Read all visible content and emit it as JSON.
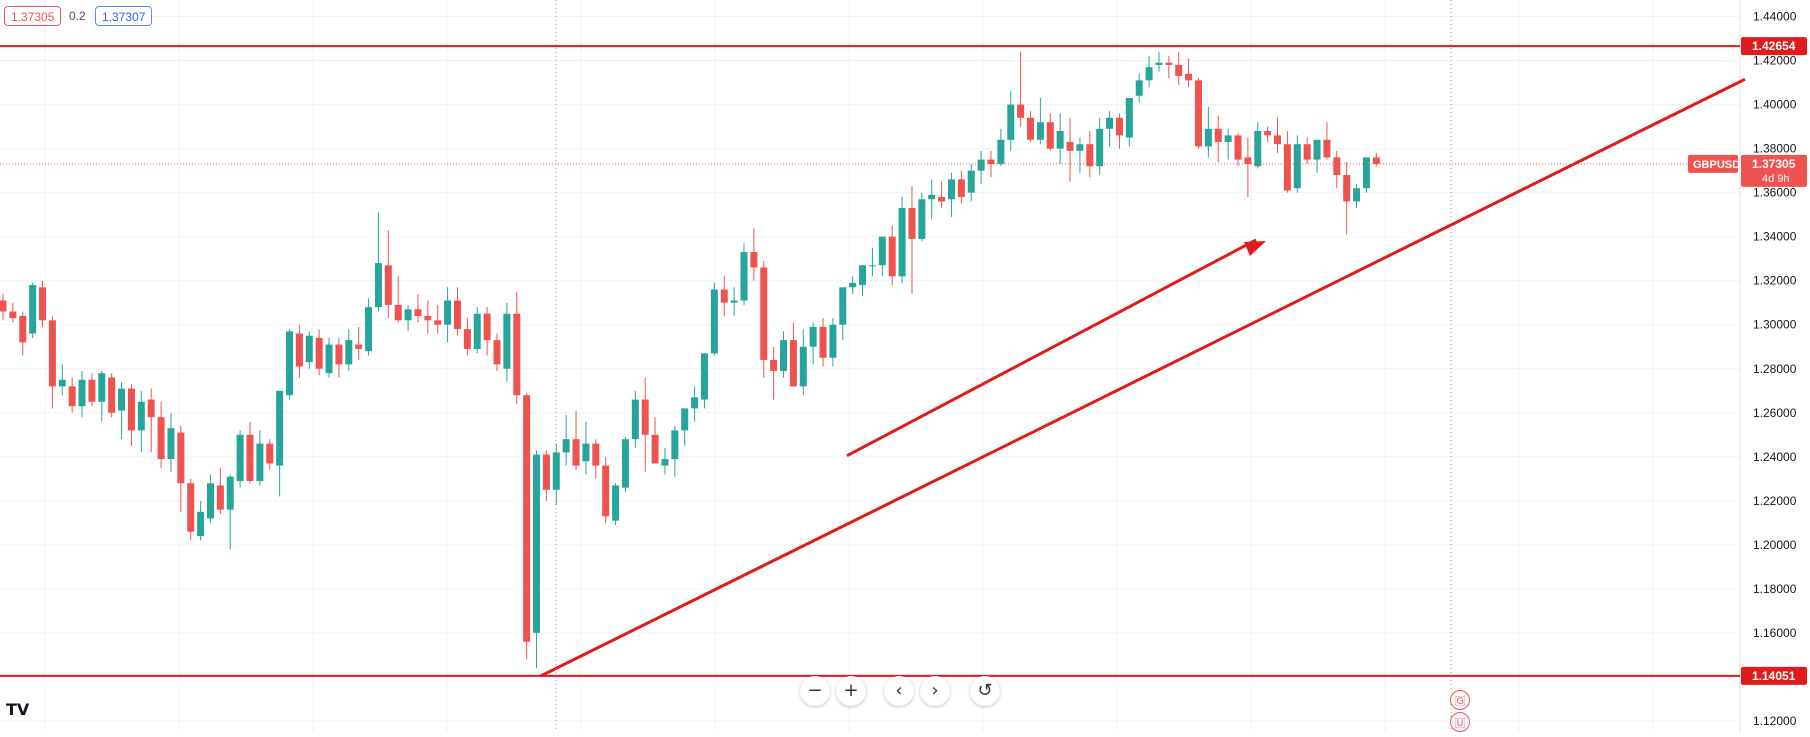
{
  "chart_data": {
    "type": "candlestick",
    "symbol": "GBPUSD",
    "y_range": [
      1.115,
      1.4475
    ],
    "y_ticks": [
      "1.44000",
      "1.42000",
      "1.40000",
      "1.38000",
      "1.36000",
      "1.34000",
      "1.32000",
      "1.30000",
      "1.28000",
      "1.26000",
      "1.24000",
      "1.22000",
      "1.20000",
      "1.18000",
      "1.16000",
      "1.14000",
      "1.12000"
    ],
    "y_tick_values": [
      1.44,
      1.42,
      1.4,
      1.38,
      1.36,
      1.34,
      1.32,
      1.3,
      1.28,
      1.26,
      1.24,
      1.22,
      1.2,
      1.18,
      1.16,
      1.14,
      1.12
    ],
    "candles": [
      [
        1.311,
        1.314,
        1.302,
        1.306
      ],
      [
        1.306,
        1.31,
        1.301,
        1.303
      ],
      [
        1.304,
        1.306,
        1.286,
        1.292
      ],
      [
        1.296,
        1.319,
        1.294,
        1.318
      ],
      [
        1.317,
        1.32,
        1.299,
        1.302
      ],
      [
        1.302,
        1.304,
        1.262,
        1.272
      ],
      [
        1.272,
        1.282,
        1.268,
        1.275
      ],
      [
        1.272,
        1.276,
        1.26,
        1.263
      ],
      [
        1.263,
        1.279,
        1.258,
        1.275
      ],
      [
        1.275,
        1.278,
        1.263,
        1.265
      ],
      [
        1.265,
        1.279,
        1.256,
        1.278
      ],
      [
        1.276,
        1.278,
        1.258,
        1.26
      ],
      [
        1.261,
        1.274,
        1.248,
        1.271
      ],
      [
        1.271,
        1.273,
        1.245,
        1.252
      ],
      [
        1.252,
        1.27,
        1.242,
        1.265
      ],
      [
        1.266,
        1.271,
        1.242,
        1.258
      ],
      [
        1.258,
        1.265,
        1.235,
        1.239
      ],
      [
        1.239,
        1.26,
        1.233,
        1.253
      ],
      [
        1.251,
        1.254,
        1.215,
        1.228
      ],
      [
        1.228,
        1.23,
        1.202,
        1.206
      ],
      [
        1.204,
        1.22,
        1.202,
        1.215
      ],
      [
        1.212,
        1.232,
        1.21,
        1.228
      ],
      [
        1.227,
        1.235,
        1.214,
        1.216
      ],
      [
        1.216,
        1.232,
        1.198,
        1.231
      ],
      [
        1.229,
        1.252,
        1.226,
        1.25
      ],
      [
        1.25,
        1.256,
        1.228,
        1.229
      ],
      [
        1.229,
        1.252,
        1.227,
        1.246
      ],
      [
        1.246,
        1.248,
        1.234,
        1.237
      ],
      [
        1.236,
        1.269,
        1.222,
        1.27
      ],
      [
        1.268,
        1.298,
        1.266,
        1.297
      ],
      [
        1.296,
        1.3,
        1.276,
        1.281
      ],
      [
        1.283,
        1.297,
        1.28,
        1.295
      ],
      [
        1.294,
        1.298,
        1.277,
        1.28
      ],
      [
        1.278,
        1.294,
        1.276,
        1.291
      ],
      [
        1.291,
        1.294,
        1.276,
        1.282
      ],
      [
        1.282,
        1.298,
        1.279,
        1.293
      ],
      [
        1.291,
        1.299,
        1.284,
        1.289
      ],
      [
        1.288,
        1.312,
        1.286,
        1.308
      ],
      [
        1.308,
        1.351,
        1.306,
        1.328
      ],
      [
        1.327,
        1.343,
        1.303,
        1.309
      ],
      [
        1.309,
        1.322,
        1.301,
        1.302
      ],
      [
        1.302,
        1.309,
        1.297,
        1.307
      ],
      [
        1.307,
        1.314,
        1.301,
        1.304
      ],
      [
        1.304,
        1.311,
        1.296,
        1.302
      ],
      [
        1.302,
        1.309,
        1.296,
        1.3
      ],
      [
        1.3,
        1.317,
        1.292,
        1.311
      ],
      [
        1.311,
        1.317,
        1.295,
        1.298
      ],
      [
        1.298,
        1.303,
        1.286,
        1.289
      ],
      [
        1.289,
        1.308,
        1.287,
        1.305
      ],
      [
        1.305,
        1.308,
        1.286,
        1.293
      ],
      [
        1.293,
        1.296,
        1.279,
        1.282
      ],
      [
        1.28,
        1.31,
        1.274,
        1.305
      ],
      [
        1.305,
        1.315,
        1.264,
        1.268
      ],
      [
        1.268,
        1.269,
        1.148,
        1.156
      ],
      [
        1.16,
        1.243,
        1.144,
        1.241
      ],
      [
        1.241,
        1.243,
        1.22,
        1.225
      ],
      [
        1.225,
        1.246,
        1.218,
        1.242
      ],
      [
        1.242,
        1.259,
        1.236,
        1.248
      ],
      [
        1.248,
        1.261,
        1.234,
        1.236
      ],
      [
        1.238,
        1.256,
        1.232,
        1.246
      ],
      [
        1.246,
        1.248,
        1.23,
        1.236
      ],
      [
        1.236,
        1.24,
        1.21,
        1.213
      ],
      [
        1.211,
        1.228,
        1.209,
        1.227
      ],
      [
        1.226,
        1.249,
        1.224,
        1.248
      ],
      [
        1.248,
        1.27,
        1.244,
        1.266
      ],
      [
        1.266,
        1.276,
        1.233,
        1.25
      ],
      [
        1.25,
        1.258,
        1.237,
        1.237
      ],
      [
        1.236,
        1.244,
        1.232,
        1.239
      ],
      [
        1.239,
        1.254,
        1.231,
        1.252
      ],
      [
        1.252,
        1.262,
        1.245,
        1.262
      ],
      [
        1.262,
        1.272,
        1.256,
        1.267
      ],
      [
        1.266,
        1.286,
        1.262,
        1.287
      ],
      [
        1.287,
        1.319,
        1.286,
        1.316
      ],
      [
        1.316,
        1.322,
        1.304,
        1.31
      ],
      [
        1.31,
        1.317,
        1.304,
        1.311
      ],
      [
        1.311,
        1.337,
        1.309,
        1.333
      ],
      [
        1.333,
        1.344,
        1.32,
        1.326
      ],
      [
        1.326,
        1.329,
        1.276,
        1.284
      ],
      [
        1.284,
        1.29,
        1.266,
        1.279
      ],
      [
        1.279,
        1.297,
        1.276,
        1.293
      ],
      [
        1.293,
        1.301,
        1.272,
        1.272
      ],
      [
        1.272,
        1.298,
        1.268,
        1.29
      ],
      [
        1.29,
        1.301,
        1.282,
        1.299
      ],
      [
        1.299,
        1.303,
        1.281,
        1.285
      ],
      [
        1.285,
        1.303,
        1.281,
        1.3
      ],
      [
        1.3,
        1.316,
        1.293,
        1.317
      ],
      [
        1.317,
        1.322,
        1.314,
        1.319
      ],
      [
        1.318,
        1.327,
        1.313,
        1.327
      ],
      [
        1.327,
        1.335,
        1.322,
        1.327
      ],
      [
        1.327,
        1.339,
        1.322,
        1.34
      ],
      [
        1.34,
        1.345,
        1.318,
        1.322
      ],
      [
        1.322,
        1.358,
        1.319,
        1.353
      ],
      [
        1.353,
        1.363,
        1.314,
        1.339
      ],
      [
        1.339,
        1.36,
        1.338,
        1.357
      ],
      [
        1.357,
        1.366,
        1.348,
        1.359
      ],
      [
        1.358,
        1.365,
        1.353,
        1.356
      ],
      [
        1.357,
        1.369,
        1.349,
        1.366
      ],
      [
        1.366,
        1.37,
        1.355,
        1.358
      ],
      [
        1.36,
        1.373,
        1.356,
        1.37
      ],
      [
        1.37,
        1.379,
        1.364,
        1.375
      ],
      [
        1.375,
        1.379,
        1.367,
        1.373
      ],
      [
        1.373,
        1.389,
        1.372,
        1.384
      ],
      [
        1.384,
        1.406,
        1.379,
        1.4
      ],
      [
        1.4,
        1.424,
        1.39,
        1.394
      ],
      [
        1.394,
        1.397,
        1.383,
        1.384
      ],
      [
        1.384,
        1.403,
        1.382,
        1.392
      ],
      [
        1.392,
        1.396,
        1.379,
        1.38
      ],
      [
        1.38,
        1.396,
        1.373,
        1.388
      ],
      [
        1.383,
        1.394,
        1.365,
        1.379
      ],
      [
        1.379,
        1.385,
        1.369,
        1.382
      ],
      [
        1.382,
        1.388,
        1.367,
        1.372
      ],
      [
        1.372,
        1.394,
        1.368,
        1.389
      ],
      [
        1.389,
        1.397,
        1.381,
        1.394
      ],
      [
        1.394,
        1.396,
        1.38,
        1.386
      ],
      [
        1.385,
        1.4,
        1.381,
        1.403
      ],
      [
        1.404,
        1.414,
        1.401,
        1.411
      ],
      [
        1.411,
        1.422,
        1.408,
        1.417
      ],
      [
        1.418,
        1.424,
        1.415,
        1.419
      ],
      [
        1.419,
        1.422,
        1.412,
        1.418
      ],
      [
        1.418,
        1.424,
        1.409,
        1.413
      ],
      [
        1.414,
        1.421,
        1.408,
        1.411
      ],
      [
        1.411,
        1.412,
        1.38,
        1.381
      ],
      [
        1.381,
        1.399,
        1.376,
        1.389
      ],
      [
        1.389,
        1.395,
        1.374,
        1.383
      ],
      [
        1.383,
        1.389,
        1.375,
        1.386
      ],
      [
        1.386,
        1.387,
        1.372,
        1.375
      ],
      [
        1.376,
        1.385,
        1.358,
        1.373
      ],
      [
        1.372,
        1.392,
        1.371,
        1.388
      ],
      [
        1.388,
        1.39,
        1.383,
        1.386
      ],
      [
        1.386,
        1.394,
        1.378,
        1.382
      ],
      [
        1.382,
        1.388,
        1.36,
        1.361
      ],
      [
        1.362,
        1.386,
        1.36,
        1.382
      ],
      [
        1.382,
        1.385,
        1.373,
        1.375
      ],
      [
        1.375,
        1.383,
        1.369,
        1.384
      ],
      [
        1.384,
        1.392,
        1.375,
        1.376
      ],
      [
        1.376,
        1.379,
        1.362,
        1.368
      ],
      [
        1.368,
        1.374,
        1.341,
        1.356
      ],
      [
        1.356,
        1.364,
        1.353,
        1.362
      ],
      [
        1.362,
        1.375,
        1.36,
        1.376
      ],
      [
        1.376,
        1.378,
        1.372,
        1.373
      ]
    ]
  },
  "lines": {
    "resistance": {
      "price": 1.42654,
      "label": "1.42654"
    },
    "support": {
      "price": 1.14051,
      "label": "1.14051"
    }
  },
  "current": {
    "symbol": "GBPUSD",
    "price_label": "1.37305",
    "countdown": "4d 9h",
    "price": 1.37305
  },
  "header": {
    "sell": "1.37305",
    "spread": "0.2",
    "buy": "1.37307"
  },
  "colors": {
    "up": "#26a69a",
    "down": "#ef5350",
    "annotation": "#e01b1b",
    "grid": "#f0f3fa"
  },
  "nav": {
    "zoom_out": "−",
    "zoom_in": "+",
    "scroll_left": "‹",
    "scroll_right": "›",
    "reset": "↺"
  },
  "logo": {
    "text": "TV"
  },
  "events": {
    "uk_flag_icon": "uk-flag-icon",
    "us_flag_icon": "us-flag-icon"
  }
}
